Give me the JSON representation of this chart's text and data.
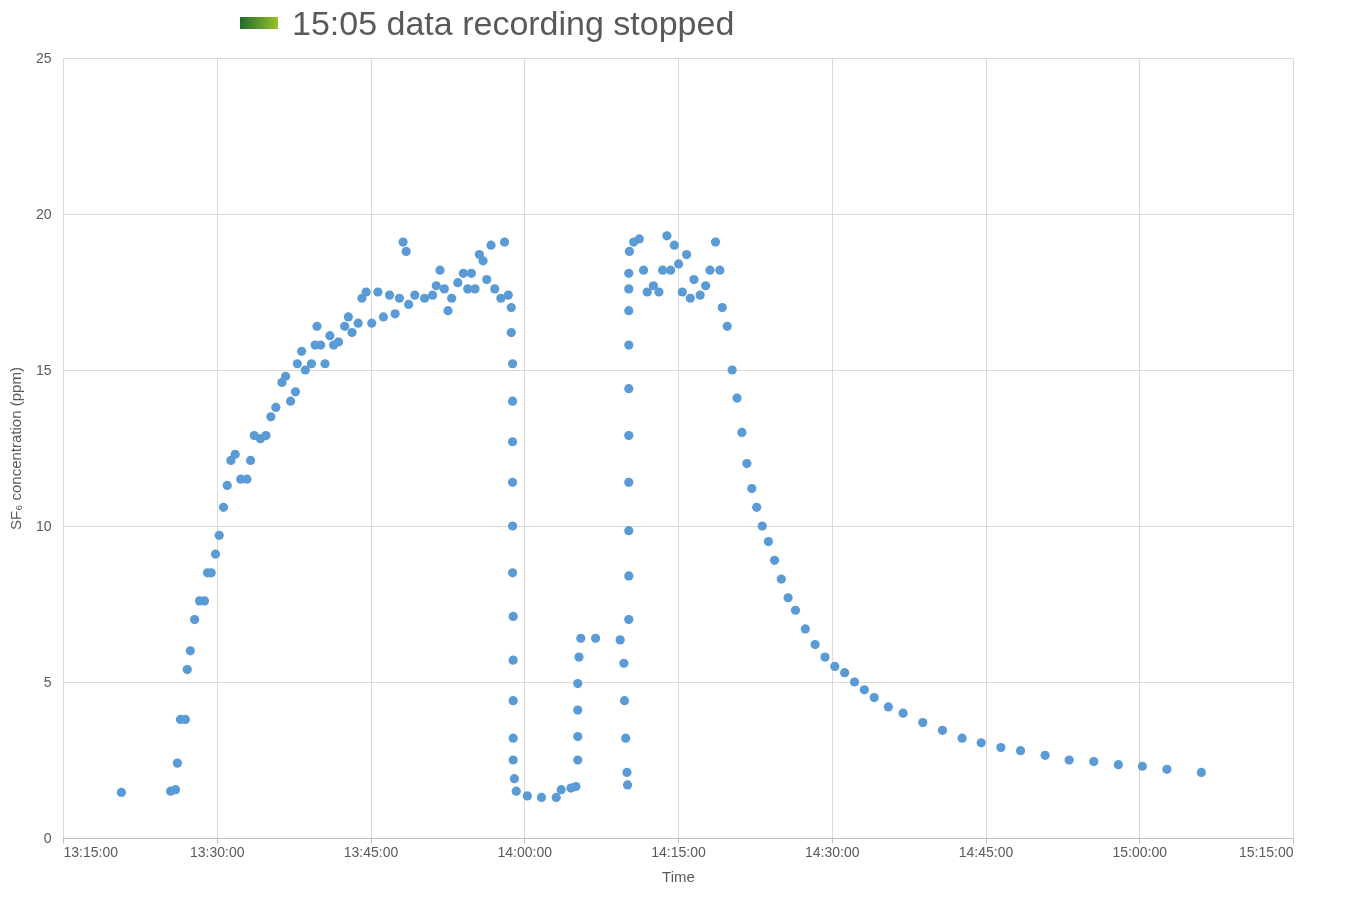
{
  "chart_data": {
    "type": "scatter",
    "xlabel": "Time",
    "ylabel": "SF₆ concentration (ppm)",
    "annotations": [
      "15:05 data recording stopped"
    ],
    "x": [
      13.345,
      13.425,
      13.433,
      13.436,
      13.441,
      13.449,
      13.452,
      13.457,
      13.464,
      13.472,
      13.48,
      13.485,
      13.491,
      13.498,
      13.504,
      13.511,
      13.517,
      13.523,
      13.53,
      13.539,
      13.549,
      13.555,
      13.561,
      13.571,
      13.58,
      13.588,
      13.596,
      13.606,
      13.612,
      13.62,
      13.628,
      13.631,
      13.638,
      13.644,
      13.654,
      13.66,
      13.663,
      13.669,
      13.676,
      13.684,
      13.69,
      13.698,
      13.708,
      13.714,
      13.72,
      13.73,
      13.736,
      13.743,
      13.752,
      13.762,
      13.771,
      13.781,
      13.79,
      13.797,
      13.803,
      13.808,
      13.812,
      13.822,
      13.838,
      13.851,
      13.857,
      13.863,
      13.87,
      13.876,
      13.882,
      13.892,
      13.901,
      13.908,
      13.914,
      13.92,
      13.927,
      13.933,
      13.939,
      13.946,
      13.952,
      13.962,
      13.968,
      13.974,
      13.979,
      13.979,
      13.981,
      13.981,
      13.981,
      13.981,
      13.981,
      13.981,
      13.982,
      13.982,
      13.982,
      13.982,
      13.982,
      13.984,
      13.987,
      14.005,
      14.028,
      14.052,
      14.06,
      14.076,
      14.084,
      14.087,
      14.087,
      14.087,
      14.087,
      14.089,
      14.092,
      14.116,
      14.156,
      14.162,
      14.163,
      14.165,
      14.167,
      14.168,
      14.17,
      14.17,
      14.17,
      14.17,
      14.17,
      14.17,
      14.17,
      14.17,
      14.17,
      14.17,
      14.171,
      14.178,
      14.187,
      14.194,
      14.2,
      14.21,
      14.219,
      14.225,
      14.232,
      14.238,
      14.244,
      14.251,
      14.257,
      14.264,
      14.27,
      14.276,
      14.286,
      14.295,
      14.302,
      14.311,
      14.318,
      14.322,
      14.33,
      14.338,
      14.346,
      14.354,
      14.362,
      14.37,
      14.378,
      14.387,
      14.397,
      14.407,
      14.418,
      14.429,
      14.441,
      14.457,
      14.473,
      14.489,
      14.505,
      14.521,
      14.537,
      14.553,
      14.569,
      14.592,
      14.616,
      14.648,
      14.68,
      14.712,
      14.743,
      14.775,
      14.807,
      14.847,
      14.886,
      14.926,
      14.966,
      15.005,
      15.045,
      15.101
    ],
    "series": [
      {
        "color": "#5b9bd5",
        "values": [
          1.46,
          1.5,
          1.55,
          2.4,
          3.8,
          3.8,
          5.4,
          6.0,
          7.0,
          7.6,
          7.6,
          8.5,
          8.5,
          9.1,
          9.7,
          10.6,
          11.3,
          12.1,
          12.3,
          11.5,
          11.5,
          12.1,
          12.9,
          12.8,
          12.9,
          13.5,
          13.8,
          14.6,
          14.8,
          14.0,
          14.3,
          15.2,
          15.6,
          15.0,
          15.2,
          15.8,
          16.4,
          15.8,
          15.2,
          16.1,
          15.8,
          15.9,
          16.4,
          16.7,
          16.2,
          16.5,
          17.3,
          17.5,
          16.5,
          17.5,
          16.7,
          17.4,
          16.8,
          17.3,
          19.1,
          18.8,
          17.1,
          17.4,
          17.3,
          17.4,
          17.7,
          18.2,
          17.6,
          16.9,
          17.3,
          17.8,
          18.1,
          17.6,
          18.1,
          17.6,
          18.7,
          18.5,
          17.9,
          19.0,
          17.6,
          17.3,
          19.1,
          17.4,
          17.0,
          16.2,
          15.2,
          14.0,
          12.7,
          11.4,
          10.0,
          8.5,
          7.1,
          5.7,
          4.4,
          3.2,
          2.5,
          1.9,
          1.5,
          1.35,
          1.3,
          1.3,
          1.55,
          1.6,
          1.65,
          2.5,
          3.25,
          4.1,
          4.95,
          5.8,
          6.4,
          6.4,
          6.35,
          5.6,
          4.4,
          3.2,
          2.1,
          1.7,
          7.0,
          8.4,
          9.85,
          11.4,
          12.9,
          14.4,
          15.8,
          16.9,
          17.6,
          18.1,
          18.8,
          19.1,
          19.2,
          18.2,
          17.5,
          17.7,
          17.5,
          18.2,
          19.3,
          18.2,
          19.0,
          18.4,
          17.5,
          18.7,
          17.3,
          17.9,
          17.4,
          17.7,
          18.2,
          19.1,
          18.2,
          17.0,
          16.4,
          15.0,
          14.1,
          13.0,
          12.0,
          11.2,
          10.6,
          10.0,
          9.5,
          8.9,
          8.3,
          7.7,
          7.3,
          6.7,
          6.2,
          5.8,
          5.5,
          5.3,
          5.0,
          4.75,
          4.5,
          4.2,
          4.0,
          3.7,
          3.45,
          3.2,
          3.05,
          2.9,
          2.8,
          2.65,
          2.5,
          2.45,
          2.35,
          2.3,
          2.2,
          2.1
        ]
      }
    ],
    "xlim": [
      13.25,
      15.25
    ],
    "xticks": [
      {
        "value": 13.25,
        "label": "13:15:00"
      },
      {
        "value": 13.5,
        "label": "13:30:00"
      },
      {
        "value": 13.75,
        "label": "13:45:00"
      },
      {
        "value": 14,
        "label": "14:00:00"
      },
      {
        "value": 14.25,
        "label": "14:15:00"
      },
      {
        "value": 14.5,
        "label": "14:30:00"
      },
      {
        "value": 14.75,
        "label": "14:45:00"
      },
      {
        "value": 15,
        "label": "15:00:00"
      },
      {
        "value": 15.25,
        "label": "15:15:00"
      }
    ],
    "ylim": [
      0,
      25
    ],
    "yticks": [
      0,
      5,
      10,
      15,
      20,
      25
    ],
    "grid": true,
    "marker": "circle"
  }
}
